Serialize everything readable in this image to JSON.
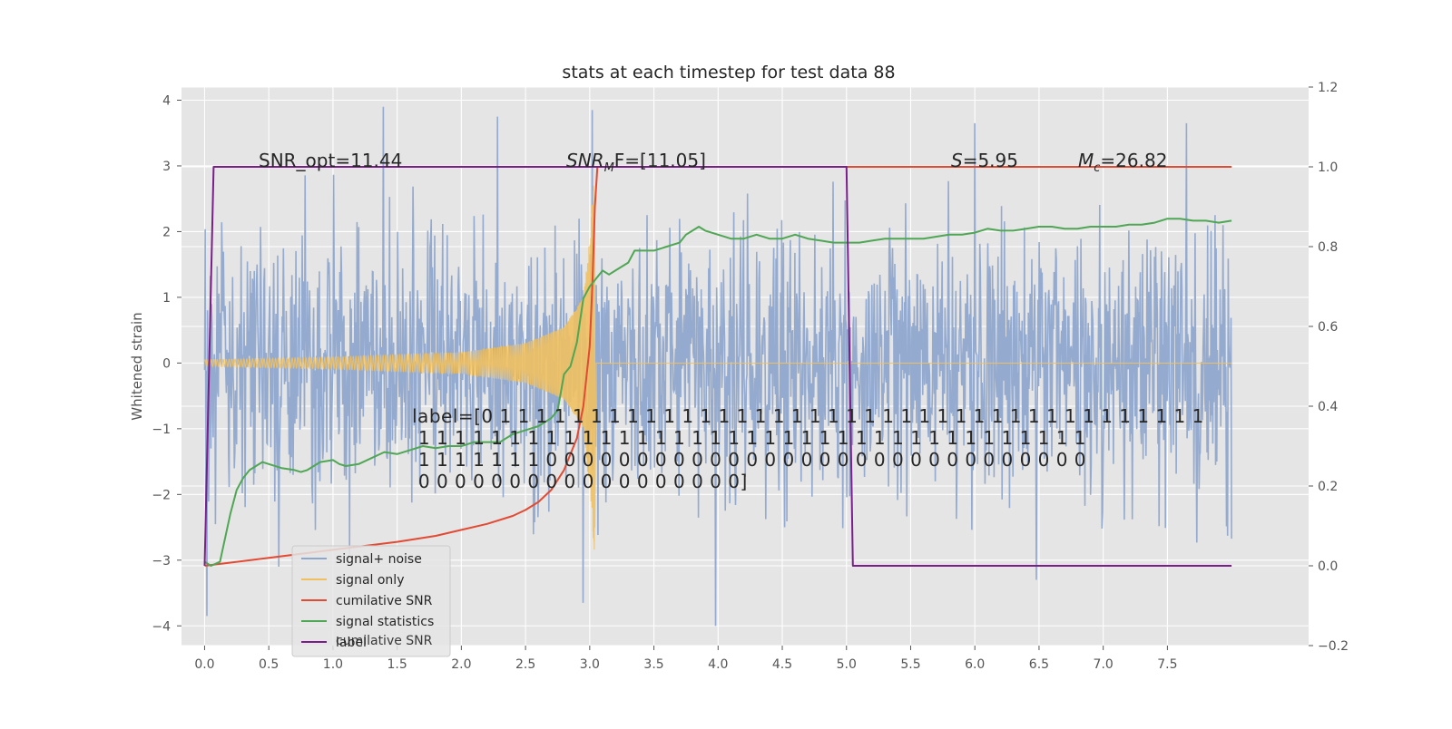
{
  "chart_data": {
    "type": "line",
    "title": "stats at each timestep for test data 88",
    "ylabel": "Whitened strain",
    "xlabel": "",
    "xlim": [
      -0.18,
      8.6
    ],
    "ylim": [
      -4.3,
      4.2
    ],
    "y2lim": [
      -0.2,
      1.2
    ],
    "x_ticks": [
      0.0,
      0.5,
      1.0,
      1.5,
      2.0,
      2.5,
      3.0,
      3.5,
      4.0,
      4.5,
      5.0,
      5.5,
      6.0,
      6.5,
      7.0,
      7.5
    ],
    "x_tick_labels": [
      "0.0",
      "0.5",
      "1.0",
      "1.5",
      "2.0",
      "2.5",
      "3.0",
      "3.5",
      "4.0",
      "4.5",
      "5.0",
      "5.5",
      "6.0",
      "6.5",
      "7.0",
      "7.5"
    ],
    "y_ticks": [
      4,
      3,
      2,
      1,
      0,
      -1,
      -2,
      -3,
      -4
    ],
    "y_tick_labels": [
      "4",
      "3",
      "2",
      "1",
      "0",
      "−1",
      "−2",
      "−3",
      "−4"
    ],
    "y2_ticks": [
      1.2,
      1.0,
      0.8,
      0.6,
      0.4,
      0.2,
      0.0,
      -0.2
    ],
    "y2_tick_labels": [
      "1.2",
      "1.0",
      "0.8",
      "0.6",
      "0.4",
      "0.2",
      "0.0",
      "−0.2"
    ],
    "grid": true,
    "legend_placement": "lower-left",
    "series": [
      {
        "name": "signal+ noise",
        "axis": "left",
        "color": "#8fa6cc",
        "style": "dense noise trace",
        "x_range": [
          0.0,
          8.0
        ],
        "sigma": 1.0,
        "extremes": [
          [
            0.02,
            -3.85
          ],
          [
            2.95,
            -3.65
          ],
          [
            3.98,
            -4.0
          ],
          [
            6.48,
            -3.3
          ],
          [
            1.39,
            3.9
          ],
          [
            3.02,
            3.85
          ],
          [
            2.28,
            3.75
          ],
          [
            7.65,
            3.65
          ],
          [
            6.0,
            3.65
          ]
        ]
      },
      {
        "name": "signal only",
        "axis": "left",
        "color": "#f0c060",
        "style": "chirp",
        "t_merger": 3.04,
        "envelope": [
          [
            0.0,
            0.05
          ],
          [
            1.0,
            0.09
          ],
          [
            2.0,
            0.16
          ],
          [
            2.5,
            0.3
          ],
          [
            2.8,
            0.55
          ],
          [
            2.95,
            1.0
          ],
          [
            3.0,
            1.9
          ],
          [
            3.04,
            3.0
          ]
        ]
      },
      {
        "name": "cumilative SNR",
        "axis": "right",
        "color": "#e24a33",
        "x": [
          0.0,
          0.5,
          1.0,
          1.5,
          1.8,
          2.0,
          2.2,
          2.4,
          2.5,
          2.6,
          2.7,
          2.8,
          2.9,
          2.95,
          3.0,
          3.02,
          3.04,
          3.06,
          3.5,
          4.0,
          5.0,
          6.0,
          7.0,
          8.0
        ],
        "y": [
          0.0,
          0.02,
          0.04,
          0.06,
          0.075,
          0.09,
          0.105,
          0.125,
          0.14,
          0.16,
          0.19,
          0.24,
          0.32,
          0.4,
          0.55,
          0.7,
          0.9,
          1.0,
          1.0,
          1.0,
          1.0,
          1.0,
          1.0,
          1.0
        ]
      },
      {
        "name": "signal statistics",
        "axis": "right",
        "color": "#4fa654",
        "x": [
          0.0,
          0.05,
          0.12,
          0.2,
          0.25,
          0.3,
          0.35,
          0.4,
          0.45,
          0.5,
          0.6,
          0.7,
          0.75,
          0.8,
          0.85,
          0.9,
          1.0,
          1.05,
          1.1,
          1.2,
          1.3,
          1.4,
          1.5,
          1.6,
          1.7,
          1.8,
          1.9,
          2.0,
          2.1,
          2.2,
          2.3,
          2.4,
          2.5,
          2.6,
          2.7,
          2.75,
          2.8,
          2.85,
          2.9,
          2.95,
          3.0,
          3.05,
          3.1,
          3.15,
          3.2,
          3.25,
          3.3,
          3.35,
          3.4,
          3.5,
          3.6,
          3.7,
          3.75,
          3.8,
          3.85,
          3.9,
          4.0,
          4.1,
          4.2,
          4.3,
          4.4,
          4.5,
          4.6,
          4.7,
          4.8,
          4.9,
          5.0,
          5.1,
          5.2,
          5.3,
          5.4,
          5.5,
          5.6,
          5.7,
          5.8,
          5.9,
          6.0,
          6.1,
          6.2,
          6.3,
          6.4,
          6.5,
          6.6,
          6.7,
          6.8,
          6.9,
          7.0,
          7.1,
          7.2,
          7.3,
          7.4,
          7.5,
          7.6,
          7.7,
          7.8,
          7.9,
          8.0
        ],
        "y": [
          0.01,
          0.0,
          0.01,
          0.13,
          0.19,
          0.22,
          0.24,
          0.25,
          0.26,
          0.255,
          0.245,
          0.24,
          0.235,
          0.24,
          0.25,
          0.26,
          0.265,
          0.255,
          0.25,
          0.255,
          0.27,
          0.285,
          0.28,
          0.29,
          0.3,
          0.295,
          0.3,
          0.3,
          0.31,
          0.31,
          0.31,
          0.33,
          0.34,
          0.35,
          0.37,
          0.39,
          0.48,
          0.5,
          0.56,
          0.67,
          0.7,
          0.72,
          0.74,
          0.73,
          0.74,
          0.75,
          0.76,
          0.79,
          0.79,
          0.79,
          0.8,
          0.81,
          0.83,
          0.84,
          0.85,
          0.84,
          0.83,
          0.82,
          0.82,
          0.83,
          0.82,
          0.82,
          0.83,
          0.82,
          0.815,
          0.81,
          0.81,
          0.81,
          0.815,
          0.82,
          0.82,
          0.82,
          0.82,
          0.825,
          0.83,
          0.83,
          0.835,
          0.845,
          0.84,
          0.84,
          0.845,
          0.85,
          0.85,
          0.845,
          0.845,
          0.85,
          0.85,
          0.85,
          0.855,
          0.855,
          0.86,
          0.87,
          0.87,
          0.865,
          0.865,
          0.86,
          0.865
        ]
      },
      {
        "name": "label",
        "axis": "right",
        "color": "#7a1e8a",
        "x": [
          0.0,
          0.07,
          5.0,
          5.05,
          8.0
        ],
        "y": [
          0.0,
          1.0,
          1.0,
          0.0,
          0.0
        ]
      }
    ],
    "annotations": {
      "snr_opt": "SNR_opt=11.44",
      "snr_mf_prefix": "SNR",
      "snr_mf_sub": "M",
      "snr_mf_rest": "F=[11.05]",
      "s_italic": "S",
      "s_value": "=5.95",
      "mc_italic": "M",
      "mc_sub": "c",
      "mc_value": "=26.82",
      "label_lines": [
        "label=[0 1 1 1 1 1 1 1 1 1 1 1 1 1 1 1 1 1 1 1 1 1 1 1 1 1 1 1 1 1 1 1 1 1 1 1 1 1 1 1",
        " 1 1 1 1 1 1 1 1 1 1 1 1 1 1 1 1 1 1 1 1 1 1 1 1 1 1 1 1 1 1 1 1 1 1 1 1 1",
        " 1 1 1 1 1 1 1 0 0 0 0 0 0 0 0 0 0 0 0 0 0 0 0 0 0 0 0 0 0 0 0 0 0 0 0 0 0",
        " 0 0 0 0 0 0 0 0 0 0 0 0 0 0 0 0 0 0]"
      ],
      "legend_overlap_text": "cumilative SNR"
    }
  }
}
